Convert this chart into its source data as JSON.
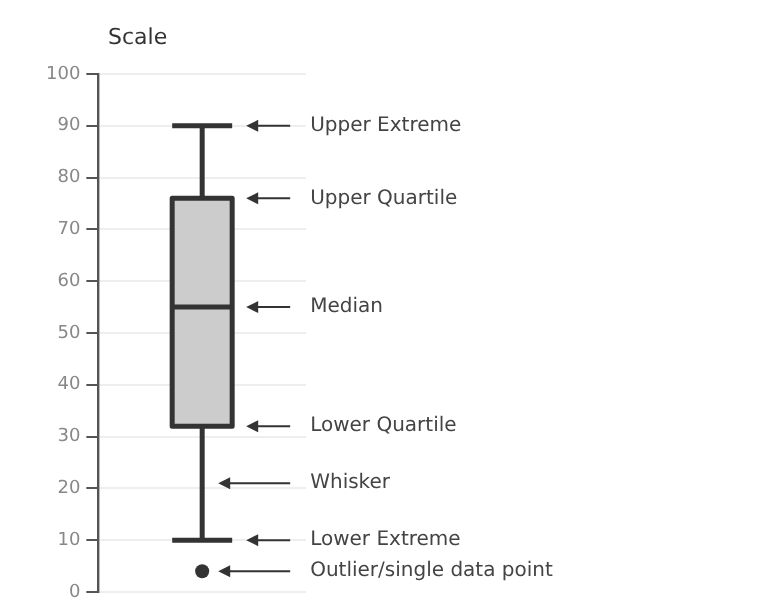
{
  "chart_data": {
    "type": "box",
    "ylabel": "Scale",
    "categories": [
      null
    ],
    "boxes": [
      {
        "low": 10,
        "q1": 32,
        "median": 55,
        "q3": 76,
        "high": 90,
        "outliers": [
          4
        ]
      }
    ],
    "color": "#cccccc",
    "ylim": [
      0,
      100
    ],
    "yticks": [
      0,
      10,
      20,
      30,
      40,
      50,
      60,
      70,
      80,
      90,
      100
    ],
    "grid": "y",
    "legend": false,
    "annotations": [
      "Upper Extreme",
      "Upper Quartile",
      "Median",
      "Lower Quartile",
      "Whisker",
      "Lower Extreme",
      "Outlier/single data point"
    ]
  }
}
